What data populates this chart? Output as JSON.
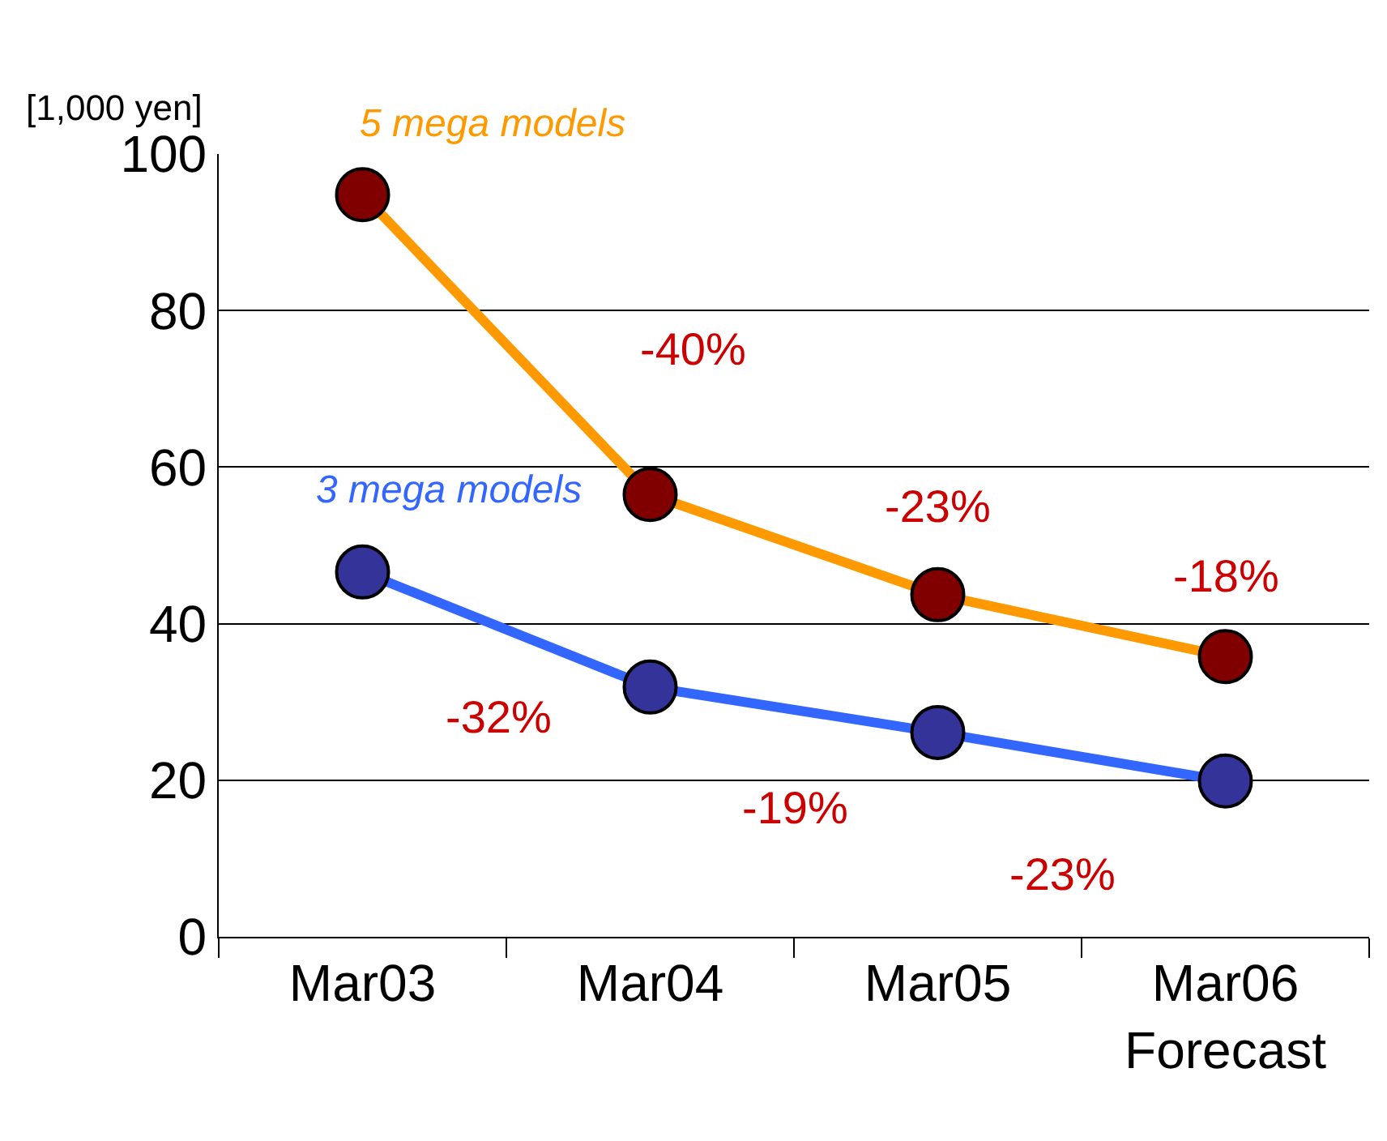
{
  "chart_data": {
    "type": "line",
    "ylabel": "[1,000 yen]",
    "categories": [
      "Mar03",
      "Mar04",
      "Mar05",
      "Mar06\nForecast"
    ],
    "series": [
      {
        "name": "5 mega models",
        "color": "#ff9900",
        "colors": [
          "#800000",
          "#800000",
          "#800000",
          "#800000"
        ],
        "values": [
          94.8,
          56.5,
          43.7,
          35.8
        ]
      },
      {
        "name": "3 mega models",
        "color": "#3366ff",
        "colors": [
          "#333399",
          "#333399",
          "#333399",
          "#333399"
        ],
        "values": [
          46.6,
          31.9,
          26.1,
          19.9
        ]
      }
    ],
    "annotations": [
      "-40%",
      "-23%",
      "-18%",
      "-32%",
      "-19%",
      "-23%"
    ],
    "ylim": [
      0,
      100
    ],
    "yticks": [
      0,
      20,
      40,
      60,
      80,
      100
    ],
    "grid": "y",
    "legend": false,
    "marker": "circle",
    "line_style": "solid"
  }
}
